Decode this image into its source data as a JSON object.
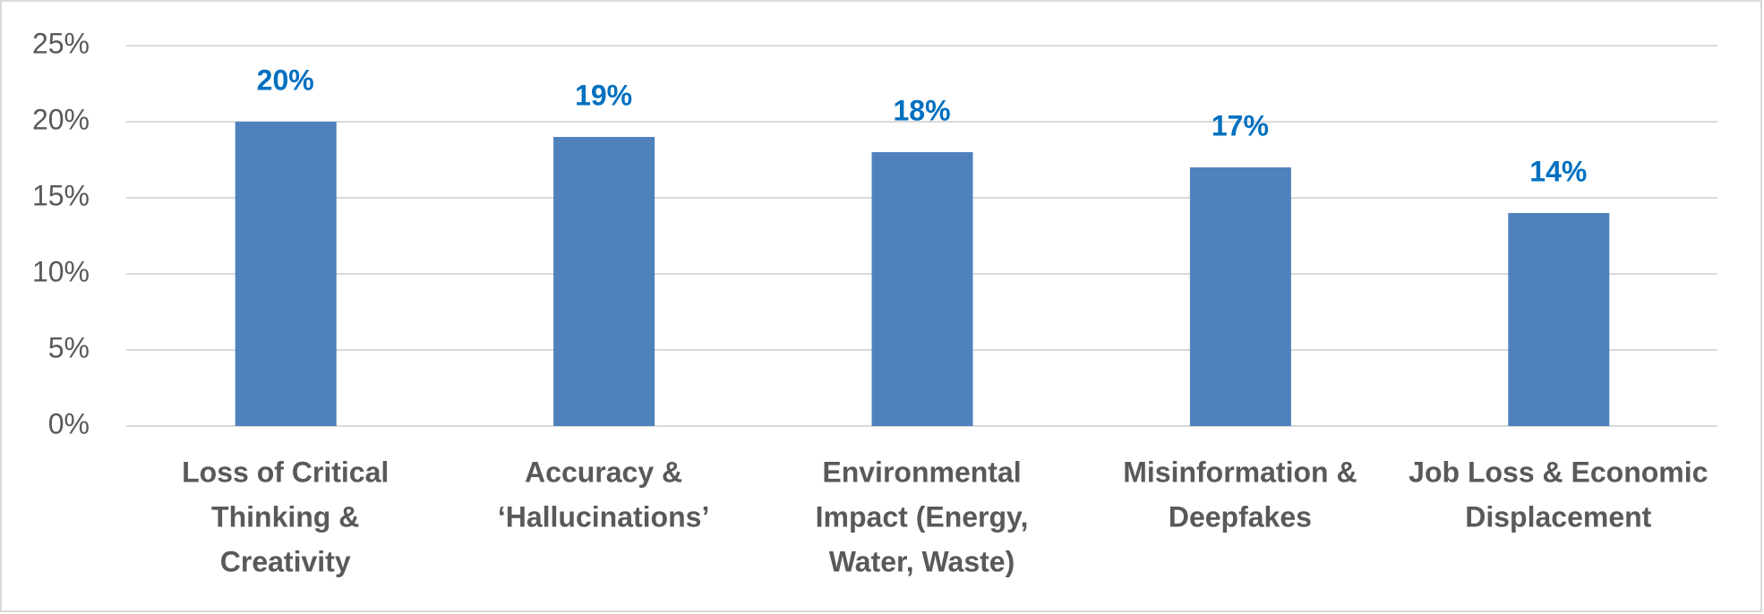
{
  "chart_data": {
    "type": "bar",
    "categories": [
      [
        "Loss of Critical",
        "Thinking &",
        "Creativity"
      ],
      [
        "Accuracy &",
        "‘Hallucinations’"
      ],
      [
        "Environmental",
        "Impact (Energy,",
        "Water, Waste)"
      ],
      [
        "Misinformation &",
        "Deepfakes"
      ],
      [
        "Job Loss & Economic",
        "Displacement"
      ]
    ],
    "values": [
      20,
      19,
      18,
      17,
      14
    ],
    "value_labels": [
      "20%",
      "19%",
      "18%",
      "17%",
      "14%"
    ],
    "color": "#4f81bd",
    "ylim": [
      0,
      25
    ],
    "yticks": [
      {
        "value": 0,
        "label": "0%"
      },
      {
        "value": 5,
        "label": "5%"
      },
      {
        "value": 10,
        "label": "10%"
      },
      {
        "value": 15,
        "label": "15%"
      },
      {
        "value": 20,
        "label": "20%"
      },
      {
        "value": 25,
        "label": "25%"
      }
    ],
    "grid": true
  }
}
